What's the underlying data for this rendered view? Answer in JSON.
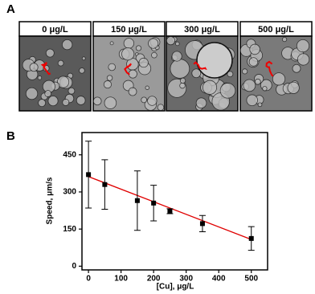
{
  "panel_a": {
    "letter": "A",
    "images": [
      "0 μg/L",
      "150 μg/L",
      "300 μg/L",
      "500 μg/L"
    ]
  },
  "chart_data": {
    "type": "scatter",
    "panel_letter": "B",
    "x_label": "[Cu], μg/L",
    "y_label": "Speed, μm/s",
    "x": [
      0,
      50,
      150,
      200,
      250,
      350,
      500
    ],
    "values": [
      370,
      330,
      265,
      255,
      222,
      172,
      112
    ],
    "errors": [
      135,
      100,
      120,
      72,
      10,
      33,
      48
    ],
    "color": "#000000",
    "fit": {
      "x": [
        0,
        500
      ],
      "values": [
        362,
        108
      ],
      "color": "#e00000"
    },
    "xlim": [
      -20,
      550
    ],
    "xticks": [
      0,
      100,
      200,
      300,
      400,
      500
    ],
    "ylim": [
      -15,
      540
    ],
    "yticks": [
      0,
      150,
      300,
      450
    ]
  }
}
